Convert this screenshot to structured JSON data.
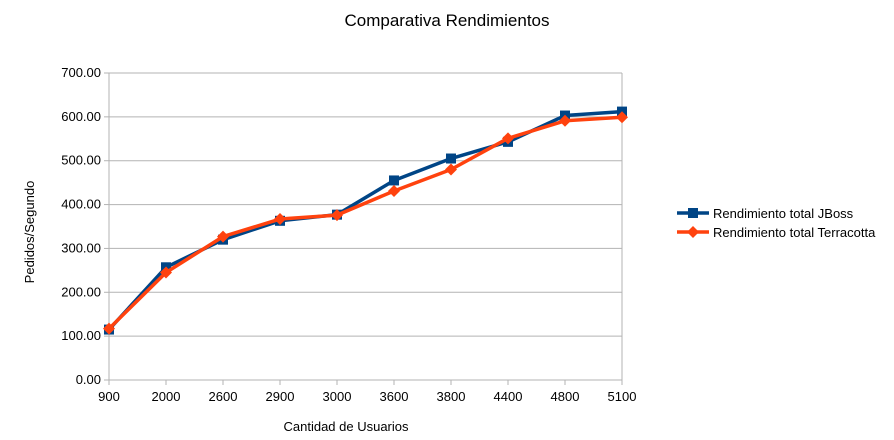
{
  "chart_data": {
    "type": "line",
    "title": "Comparativa Rendimientos",
    "xlabel": "Cantidad de Usuarios",
    "ylabel": "Pedidos/Segundo",
    "categories": [
      "900",
      "2000",
      "2600",
      "2900",
      "3000",
      "3600",
      "3800",
      "4400",
      "4800",
      "5100"
    ],
    "ylim": [
      0,
      700
    ],
    "yticks": [
      "0.00",
      "100.00",
      "200.00",
      "300.00",
      "400.00",
      "500.00",
      "600.00",
      "700.00"
    ],
    "grid": true,
    "legend_position": "right",
    "series": [
      {
        "name": "Rendimiento total JBoss",
        "color": "#004586",
        "marker": "square",
        "values": [
          115,
          257,
          320,
          363,
          377,
          455,
          505,
          543,
          603,
          612
        ]
      },
      {
        "name": "Rendimiento total Terracotta",
        "color": "#ff420e",
        "marker": "diamond",
        "values": [
          117,
          245,
          327,
          367,
          376,
          431,
          480,
          551,
          591,
          599
        ]
      }
    ]
  }
}
